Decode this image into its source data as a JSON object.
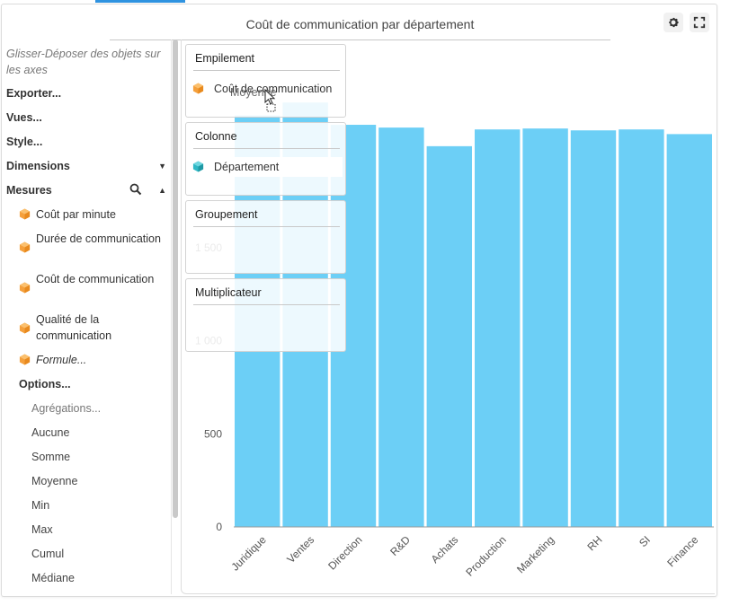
{
  "window": {
    "title": "Coût de communication par département",
    "settings_icon": "gear-icon",
    "fullscreen_icon": "fullscreen-icon"
  },
  "sidebar": {
    "hint": "Glisser-Déposer des objets sur les axes",
    "export_label": "Exporter...",
    "views_label": "Vues...",
    "style_label": "Style...",
    "dimensions_label": "Dimensions",
    "measures_label": "Mesures",
    "measures": [
      {
        "label": "Coût par minute"
      },
      {
        "label": "Durée de communication"
      },
      {
        "label": "Coût de communication"
      },
      {
        "label": "Qualité de la communication"
      },
      {
        "label": "Formule..."
      }
    ],
    "options_label": "Options...",
    "options": [
      {
        "label": "Agrégations..."
      },
      {
        "label": "Aucune"
      },
      {
        "label": "Somme"
      },
      {
        "label": "Moyenne"
      },
      {
        "label": "Min"
      },
      {
        "label": "Max"
      },
      {
        "label": "Cumul"
      },
      {
        "label": "Médiane"
      }
    ]
  },
  "dropzones": {
    "stacking": {
      "title": "Empilement",
      "chip": "Coût de communication"
    },
    "column": {
      "title": "Colonne",
      "chip": "Département"
    },
    "grouping": {
      "title": "Groupement"
    },
    "multiplier": {
      "title": "Multiplicateur"
    }
  },
  "drag": {
    "ghost_label": "Moyenne"
  },
  "colors": {
    "bar": "#6ccff6",
    "measure_cube": "#f5a03c",
    "dimension_cube": "#2fb8c5",
    "accent": "#2f93e0"
  },
  "chart_data": {
    "type": "bar",
    "title": "Coût de communication par département",
    "categories": [
      "Juridique",
      "Ventes",
      "Direction",
      "R&D",
      "Achats",
      "Production",
      "Marketing",
      "RH",
      "SI",
      "Finance"
    ],
    "values": [
      2210,
      2280,
      2160,
      2145,
      2045,
      2135,
      2140,
      2130,
      2135,
      2110
    ],
    "ylim": [
      0,
      2500
    ],
    "yticks": [
      {
        "value": 0,
        "label": "0"
      },
      {
        "value": 500,
        "label": "500"
      },
      {
        "value": 1000,
        "label": "1 000"
      },
      {
        "value": 1500,
        "label": "1 500"
      }
    ],
    "grid": false,
    "xlabel": "",
    "ylabel": ""
  }
}
